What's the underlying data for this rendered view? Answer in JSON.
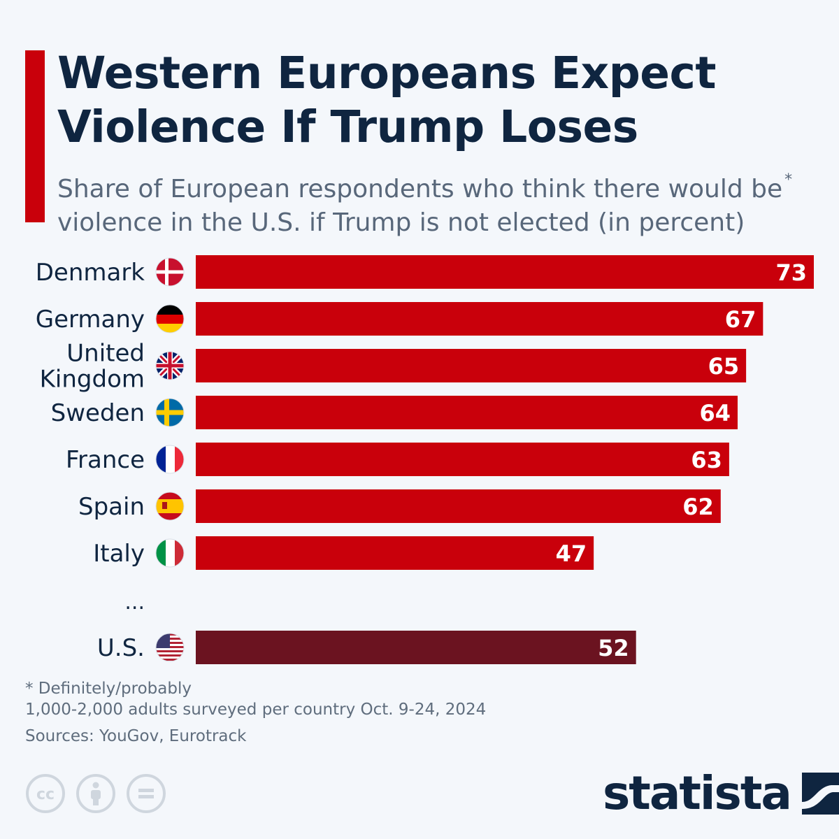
{
  "header": {
    "title_line1": "Western Europeans Expect",
    "title_line2": "Violence If Trump Loses",
    "subtitle_line1": "Share of European respondents who think there would be",
    "subtitle_star": "*",
    "subtitle_line2": "violence in the U.S. if Trump is not elected (in percent)"
  },
  "chart_data": {
    "type": "bar",
    "orientation": "horizontal",
    "title": "Western Europeans Expect Violence If Trump Loses",
    "xlabel": "",
    "ylabel": "",
    "xlim": [
      0,
      73
    ],
    "categories": [
      "Denmark",
      "Germany",
      "United Kingdom",
      "Sweden",
      "France",
      "Spain",
      "Italy",
      "U.S."
    ],
    "category_lines": [
      [
        "Denmark"
      ],
      [
        "Germany"
      ],
      [
        "United",
        "Kingdom"
      ],
      [
        "Sweden"
      ],
      [
        "France"
      ],
      [
        "Spain"
      ],
      [
        "Italy"
      ],
      [
        "U.S."
      ]
    ],
    "values": [
      73,
      67,
      65,
      64,
      63,
      62,
      47,
      52
    ],
    "flags": [
      "denmark-flag-icon",
      "germany-flag-icon",
      "uk-flag-icon",
      "sweden-flag-icon",
      "france-flag-icon",
      "spain-flag-icon",
      "italy-flag-icon",
      "usa-flag-icon"
    ],
    "highlight": [
      false,
      false,
      false,
      false,
      false,
      false,
      false,
      true
    ],
    "gap_marker": "...",
    "bar_color": "#c9000b",
    "highlight_color": "#6b1320"
  },
  "notes": {
    "footnote_line1": "* Definitely/probably",
    "footnote_line2": "1,000-2,000 adults surveyed per country Oct. 9-24, 2024",
    "sources": "Sources: YouGov, Eurotrack"
  },
  "brand": {
    "name": "statista"
  },
  "colors": {
    "accent": "#c9000b",
    "title": "#0f2540",
    "subtitle": "#58677a",
    "background": "#f4f7fb"
  }
}
